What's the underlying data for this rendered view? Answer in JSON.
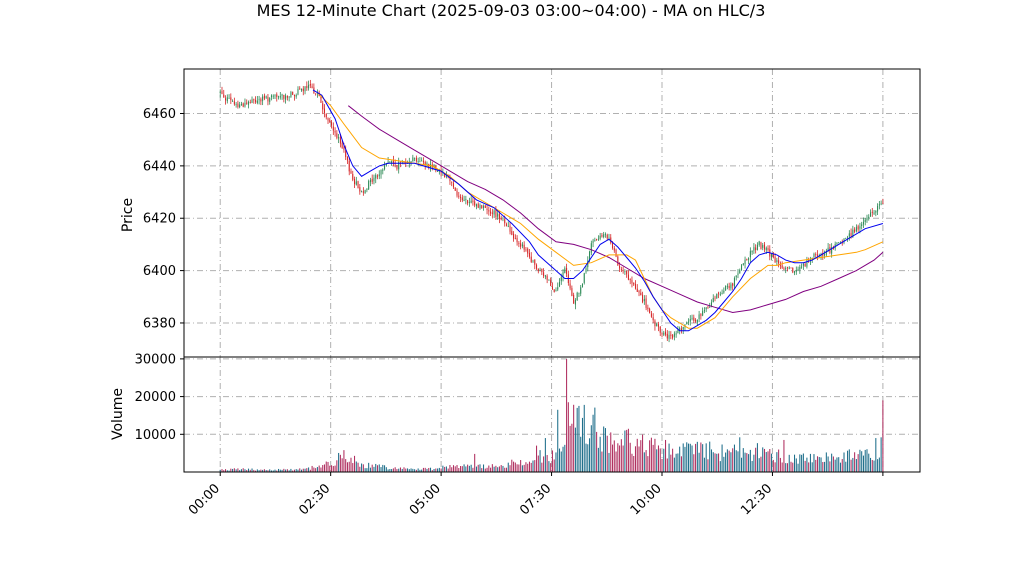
{
  "chart_data": {
    "type": "candlestick",
    "title": "MES 12-Minute Chart (2025-09-03 03:00~04:00) - MA on HLC/3",
    "price_panel": {
      "ylabel": "Price",
      "ylim": [
        6367,
        6477
      ],
      "yticks": [
        6380,
        6400,
        6420,
        6440,
        6460
      ],
      "grid": true
    },
    "volume_panel": {
      "ylabel": "Volume",
      "ylim": [
        0,
        30500
      ],
      "yticks": [
        10000,
        20000,
        30000
      ],
      "grid": true
    },
    "xticks": [
      {
        "x": 0,
        "label": "00:00"
      },
      {
        "x": 12.5,
        "label": "02:30"
      },
      {
        "x": 25,
        "label": "05:00"
      },
      {
        "x": 37.5,
        "label": "07:30"
      },
      {
        "x": 50,
        "label": "10:00"
      },
      {
        "x": 62.5,
        "label": "12:30"
      },
      {
        "x": 75,
        "label": ""
      }
    ],
    "x_unit": "hours since 00:00 ÷ 0.2 (12-minute bars)",
    "xlim": [
      -4.1,
      79.2
    ],
    "close_anchors": [
      [
        0,
        6468
      ],
      [
        1,
        6465
      ],
      [
        2,
        6463
      ],
      [
        4,
        6465
      ],
      [
        6,
        6466
      ],
      [
        8,
        6467
      ],
      [
        10,
        6470
      ],
      [
        11,
        6468
      ],
      [
        12,
        6458
      ],
      [
        13,
        6453
      ],
      [
        14,
        6445
      ],
      [
        15,
        6435
      ],
      [
        16,
        6430
      ],
      [
        17,
        6434
      ],
      [
        18,
        6437
      ],
      [
        19,
        6442
      ],
      [
        20,
        6440
      ],
      [
        21,
        6442
      ],
      [
        22,
        6443
      ],
      [
        23,
        6441
      ],
      [
        24,
        6440
      ],
      [
        25,
        6438
      ],
      [
        26,
        6435
      ],
      [
        27,
        6428
      ],
      [
        28,
        6426
      ],
      [
        29,
        6425
      ],
      [
        30,
        6424
      ],
      [
        31,
        6422
      ],
      [
        32,
        6420
      ],
      [
        33,
        6414
      ],
      [
        34,
        6410
      ],
      [
        35,
        6405
      ],
      [
        36,
        6400
      ],
      [
        37,
        6397
      ],
      [
        38,
        6392
      ],
      [
        39,
        6400
      ],
      [
        40,
        6388
      ],
      [
        41,
        6395
      ],
      [
        42,
        6410
      ],
      [
        43,
        6414
      ],
      [
        44,
        6412
      ],
      [
        45,
        6403
      ],
      [
        46,
        6398
      ],
      [
        47,
        6393
      ],
      [
        48,
        6388
      ],
      [
        49,
        6380
      ],
      [
        50,
        6376
      ],
      [
        51,
        6374
      ],
      [
        52,
        6378
      ],
      [
        53,
        6380
      ],
      [
        54,
        6382
      ],
      [
        55,
        6385
      ],
      [
        56,
        6390
      ],
      [
        57,
        6393
      ],
      [
        58,
        6395
      ],
      [
        59,
        6401
      ],
      [
        60,
        6407
      ],
      [
        61,
        6410
      ],
      [
        62,
        6407
      ],
      [
        63,
        6403
      ],
      [
        64,
        6400
      ],
      [
        65,
        6400
      ],
      [
        66,
        6402
      ],
      [
        67,
        6405
      ],
      [
        68,
        6406
      ],
      [
        69,
        6408
      ],
      [
        70,
        6410
      ],
      [
        71,
        6413
      ],
      [
        72,
        6416
      ],
      [
        73,
        6419
      ],
      [
        74,
        6423
      ],
      [
        75,
        6426
      ]
    ],
    "ma_fast": [
      [
        10.5,
        6469
      ],
      [
        11.5,
        6467
      ],
      [
        13,
        6458
      ],
      [
        14,
        6448
      ],
      [
        15,
        6440
      ],
      [
        16,
        6436
      ],
      [
        17,
        6438
      ],
      [
        18,
        6440
      ],
      [
        19,
        6441
      ],
      [
        22,
        6441
      ],
      [
        25,
        6438
      ],
      [
        27,
        6433
      ],
      [
        29,
        6427
      ],
      [
        31,
        6424
      ],
      [
        33,
        6418
      ],
      [
        35,
        6411
      ],
      [
        36,
        6406
      ],
      [
        37,
        6403
      ],
      [
        38,
        6400
      ],
      [
        39,
        6397
      ],
      [
        40,
        6397
      ],
      [
        41,
        6400
      ],
      [
        42,
        6405
      ],
      [
        43,
        6410
      ],
      [
        44,
        6412
      ],
      [
        45,
        6409
      ],
      [
        46,
        6405
      ],
      [
        47,
        6401
      ],
      [
        48,
        6396
      ],
      [
        49,
        6390
      ],
      [
        50,
        6385
      ],
      [
        51,
        6380
      ],
      [
        52,
        6377
      ],
      [
        53,
        6377
      ],
      [
        54,
        6379
      ],
      [
        55,
        6381
      ],
      [
        56,
        6384
      ],
      [
        57,
        6388
      ],
      [
        58,
        6392
      ],
      [
        59,
        6397
      ],
      [
        60,
        6403
      ],
      [
        61,
        6406
      ],
      [
        62,
        6407
      ],
      [
        63,
        6406
      ],
      [
        64,
        6404
      ],
      [
        65,
        6403
      ],
      [
        66,
        6403
      ],
      [
        67,
        6404
      ],
      [
        68,
        6406
      ],
      [
        69,
        6408
      ],
      [
        70,
        6410
      ],
      [
        71,
        6412
      ],
      [
        72,
        6414
      ],
      [
        73,
        6416
      ],
      [
        75,
        6418
      ]
    ],
    "ma_mid": [
      [
        11,
        6468
      ],
      [
        12.5,
        6463
      ],
      [
        14,
        6456
      ],
      [
        16,
        6447
      ],
      [
        18,
        6443
      ],
      [
        20,
        6442
      ],
      [
        22,
        6441
      ],
      [
        24,
        6440
      ],
      [
        26,
        6436
      ],
      [
        28,
        6430
      ],
      [
        30,
        6426
      ],
      [
        32,
        6422
      ],
      [
        34,
        6418
      ],
      [
        36,
        6412
      ],
      [
        38,
        6407
      ],
      [
        40,
        6402
      ],
      [
        42,
        6403
      ],
      [
        44,
        6406
      ],
      [
        46,
        6406
      ],
      [
        47,
        6404
      ],
      [
        48,
        6397
      ],
      [
        49,
        6390
      ],
      [
        50,
        6385
      ],
      [
        51,
        6382
      ],
      [
        52,
        6380
      ],
      [
        53,
        6378
      ],
      [
        54,
        6378
      ],
      [
        56,
        6382
      ],
      [
        58,
        6390
      ],
      [
        60,
        6397
      ],
      [
        62,
        6402
      ],
      [
        63,
        6402
      ],
      [
        64,
        6403
      ],
      [
        66,
        6404
      ],
      [
        68,
        6405
      ],
      [
        70,
        6406
      ],
      [
        72,
        6407
      ],
      [
        73,
        6408
      ],
      [
        75,
        6411
      ]
    ],
    "ma_slow": [
      [
        14.5,
        6463
      ],
      [
        16,
        6459
      ],
      [
        18,
        6454
      ],
      [
        20,
        6450
      ],
      [
        22,
        6446
      ],
      [
        24,
        6442
      ],
      [
        26,
        6438
      ],
      [
        28,
        6434
      ],
      [
        30,
        6431
      ],
      [
        32,
        6427
      ],
      [
        34,
        6422
      ],
      [
        36,
        6416
      ],
      [
        38,
        6411
      ],
      [
        40,
        6410
      ],
      [
        42,
        6408
      ],
      [
        44,
        6405
      ],
      [
        46,
        6401
      ],
      [
        48,
        6397
      ],
      [
        50,
        6394
      ],
      [
        52,
        6391
      ],
      [
        54,
        6388
      ],
      [
        56,
        6386
      ],
      [
        58,
        6384
      ],
      [
        60,
        6385
      ],
      [
        62,
        6387
      ],
      [
        64,
        6389
      ],
      [
        66,
        6392
      ],
      [
        68,
        6394
      ],
      [
        70,
        6397
      ],
      [
        72,
        6400
      ],
      [
        74,
        6404
      ],
      [
        75,
        6407
      ]
    ],
    "volume_anchors": [
      [
        0,
        500
      ],
      [
        2,
        800
      ],
      [
        5,
        600
      ],
      [
        8,
        700
      ],
      [
        10,
        900
      ],
      [
        11,
        1500
      ],
      [
        12,
        2000
      ],
      [
        13,
        2600
      ],
      [
        14,
        5000
      ],
      [
        15,
        3500
      ],
      [
        16,
        2000
      ],
      [
        17,
        1600
      ],
      [
        18,
        1500
      ],
      [
        19,
        1200
      ],
      [
        20,
        1000
      ],
      [
        21,
        1000
      ],
      [
        22,
        800
      ],
      [
        24,
        900
      ],
      [
        26,
        1600
      ],
      [
        28,
        1500
      ],
      [
        30,
        1500
      ],
      [
        32,
        1700
      ],
      [
        33,
        2300
      ],
      [
        34,
        2200
      ],
      [
        35,
        3000
      ],
      [
        36,
        3500
      ],
      [
        37,
        4000
      ],
      [
        38,
        4500
      ],
      [
        39,
        7000
      ],
      [
        40,
        13000
      ],
      [
        41,
        12500
      ],
      [
        42,
        13000
      ],
      [
        43,
        10000
      ],
      [
        44,
        8500
      ],
      [
        45,
        9000
      ],
      [
        46,
        8500
      ],
      [
        47,
        7000
      ],
      [
        48,
        7500
      ],
      [
        49,
        6500
      ],
      [
        50,
        6000
      ],
      [
        51,
        6500
      ],
      [
        52,
        5500
      ],
      [
        53,
        5500
      ],
      [
        54,
        6000
      ],
      [
        55,
        6000
      ],
      [
        56,
        5500
      ],
      [
        57,
        5000
      ],
      [
        58,
        5500
      ],
      [
        59,
        4500
      ],
      [
        60,
        5000
      ],
      [
        61,
        5500
      ],
      [
        62,
        4800
      ],
      [
        63,
        4500
      ],
      [
        64,
        4200
      ],
      [
        65,
        3800
      ],
      [
        66,
        3800
      ],
      [
        67,
        3600
      ],
      [
        68,
        3800
      ],
      [
        69,
        4000
      ],
      [
        70,
        4500
      ],
      [
        71,
        4200
      ],
      [
        72,
        4000
      ],
      [
        73,
        4800
      ],
      [
        74,
        5000
      ],
      [
        75,
        6000
      ]
    ],
    "volume_spikes": [
      [
        39.25,
        30000
      ],
      [
        39.5,
        18500
      ],
      [
        39.75,
        12800
      ],
      [
        40.5,
        17000
      ],
      [
        41.25,
        17800
      ],
      [
        42,
        12400
      ],
      [
        38.25,
        16500
      ],
      [
        36.75,
        9000
      ],
      [
        58.75,
        9200
      ],
      [
        55,
        7600
      ],
      [
        54,
        8000
      ],
      [
        50.5,
        8500
      ],
      [
        47.25,
        8800
      ],
      [
        48.75,
        9100
      ],
      [
        45.75,
        11000
      ],
      [
        44.25,
        10500
      ],
      [
        63.75,
        8500
      ],
      [
        71.25,
        6000
      ],
      [
        74.25,
        9000
      ],
      [
        74.75,
        9200
      ],
      [
        75,
        19000
      ],
      [
        14,
        5800
      ],
      [
        28.75,
        4800
      ],
      [
        35.75,
        7000
      ],
      [
        36.25,
        5800
      ]
    ],
    "colors": {
      "up": "#2e8b57",
      "down": "#d62728",
      "volume_up": "#1f6f8b",
      "volume_down": "#b03060",
      "ma_fast": "#0000ee",
      "ma_mid": "#ffa500",
      "ma_slow": "#800080",
      "grid": "#b0b0b0"
    }
  }
}
